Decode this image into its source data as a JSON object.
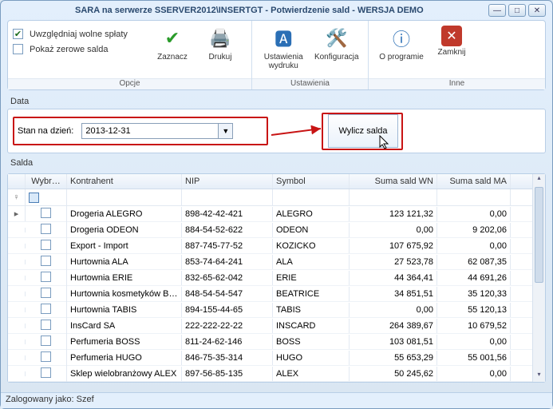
{
  "window": {
    "title": "SARA na serwerze SSERVER2012\\INSERTGT - Potwierdzenie sald - WERSJA DEMO"
  },
  "ribbon": {
    "opcje": {
      "label": "Opcje",
      "uwzgledniaj": "Uwzględniaj wolne spłaty",
      "pokaz": "Pokaż zerowe salda",
      "zaznacz": "Zaznacz",
      "drukuj": "Drukuj"
    },
    "ustawienia": {
      "label": "Ustawienia",
      "ustawienia_wydruku": "Ustawienia wydruku",
      "konfiguracja": "Konfiguracja"
    },
    "inne": {
      "label": "Inne",
      "oprogramie": "O programie",
      "zamknij": "Zamknij"
    }
  },
  "data_panel": {
    "label": "Data",
    "stan_label": "Stan na dzień:",
    "date_value": "2013-12-31",
    "wylicz": "Wylicz salda"
  },
  "salda": {
    "label": "Salda",
    "columns": {
      "wybr": "Wybr…",
      "kontrahent": "Kontrahent",
      "nip": "NIP",
      "symbol": "Symbol",
      "wn": "Suma sald WN",
      "ma": "Suma sald MA"
    },
    "rows": [
      {
        "k": "Drogeria ALEGRO",
        "nip": "898-42-42-421",
        "sym": "ALEGRO",
        "wn": "123 121,32",
        "ma": "0,00"
      },
      {
        "k": "Drogeria ODEON",
        "nip": "884-54-52-622",
        "sym": "ODEON",
        "wn": "0,00",
        "ma": "9 202,06"
      },
      {
        "k": "Export - Import",
        "nip": "887-745-77-52",
        "sym": "KOZICKO",
        "wn": "107 675,92",
        "ma": "0,00"
      },
      {
        "k": "Hurtownia ALA",
        "nip": "853-74-64-241",
        "sym": "ALA",
        "wn": "27 523,78",
        "ma": "62 087,35"
      },
      {
        "k": "Hurtownia ERIE",
        "nip": "832-65-62-042",
        "sym": "ERIE",
        "wn": "44 364,41",
        "ma": "44 691,26"
      },
      {
        "k": "Hurtownia kosmetyków B…",
        "nip": "848-54-54-547",
        "sym": "BEATRICE",
        "wn": "34 851,51",
        "ma": "35 120,33"
      },
      {
        "k": "Hurtownia TABIS",
        "nip": "894-155-44-65",
        "sym": "TABIS",
        "wn": "0,00",
        "ma": "55 120,13"
      },
      {
        "k": "InsCard SA",
        "nip": "222-222-22-22",
        "sym": "INSCARD",
        "wn": "264 389,67",
        "ma": "10 679,52"
      },
      {
        "k": "Perfumeria BOSS",
        "nip": "811-24-62-146",
        "sym": "BOSS",
        "wn": "103 081,51",
        "ma": "0,00"
      },
      {
        "k": "Perfumeria HUGO",
        "nip": "846-75-35-314",
        "sym": "HUGO",
        "wn": "55 653,29",
        "ma": "55 001,56"
      },
      {
        "k": "Sklep wielobranżowy  ALEX",
        "nip": "897-56-85-135",
        "sym": "ALEX",
        "wn": "50 245,62",
        "ma": "0,00"
      }
    ]
  },
  "status": "Zalogowany jako: Szef"
}
